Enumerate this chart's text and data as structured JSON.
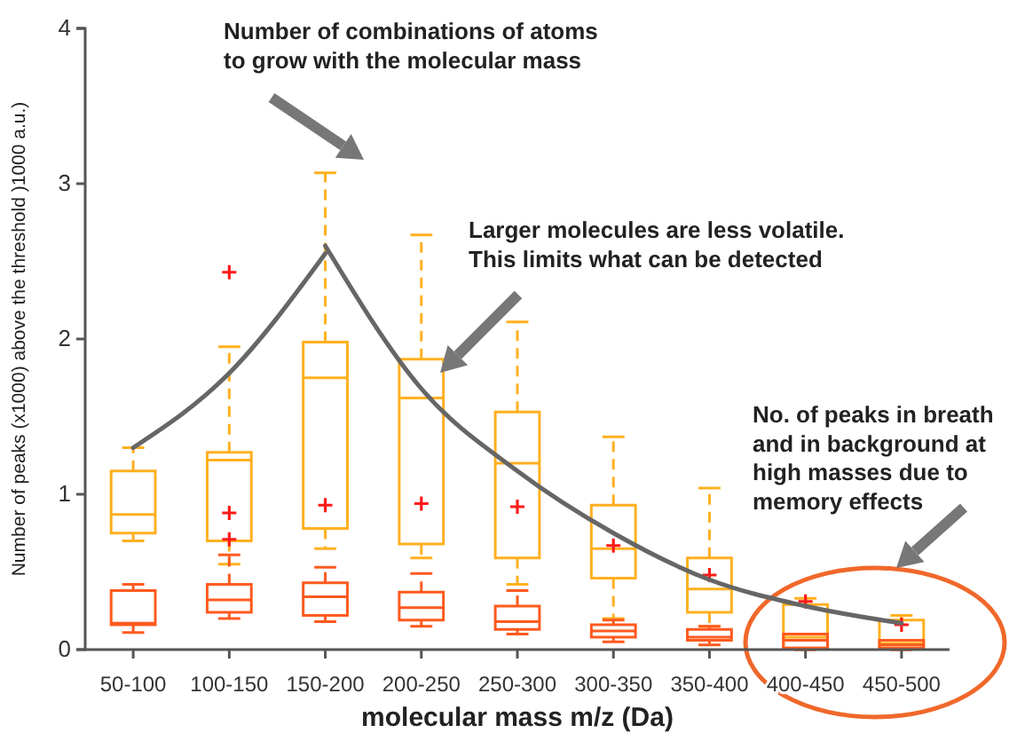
{
  "chart_data": {
    "type": "box",
    "xlabel": "molecular mass m/z (Da)",
    "ylabel": "Number of peaks (x1000) above the threshold )1000 a.u.)",
    "categories": [
      "50-100",
      "100-150",
      "150-200",
      "200-250",
      "250-300",
      "300-350",
      "350-400",
      "400-450",
      "450-500"
    ],
    "ylim": [
      0,
      4
    ],
    "yticks": [
      0,
      1,
      2,
      3,
      4
    ],
    "grid": false,
    "annotations": [
      "Number of combinations of atoms\nto grow with the molecular mass",
      "Larger molecules are less volatile.\nThis limits what can be detected",
      "No. of peaks in breath\nand in background at\nhigh masses due to\nmemory effects"
    ],
    "series": [
      {
        "color": "#ffb020",
        "boxes": [
          {
            "low": 0.7,
            "q1": 0.75,
            "median": 0.87,
            "q3": 1.15,
            "high": 1.3
          },
          {
            "low": 0.55,
            "q1": 0.7,
            "median": 1.22,
            "q3": 1.27,
            "high": 1.95,
            "outliers": [
              2.43,
              0.88,
              0.71
            ]
          },
          {
            "low": 0.65,
            "q1": 0.78,
            "median": 1.75,
            "q3": 1.98,
            "high": 3.07,
            "outliers": [
              0.93
            ]
          },
          {
            "low": 0.59,
            "q1": 0.68,
            "median": 1.62,
            "q3": 1.87,
            "high": 2.67,
            "outliers": [
              0.94
            ]
          },
          {
            "low": 0.42,
            "q1": 0.59,
            "median": 1.2,
            "q3": 1.53,
            "high": 2.11,
            "outliers": [
              0.92
            ]
          },
          {
            "low": 0.2,
            "q1": 0.46,
            "median": 0.65,
            "q3": 0.93,
            "high": 1.37,
            "outliers": [
              0.67
            ]
          },
          {
            "low": 0.15,
            "q1": 0.24,
            "median": 0.39,
            "q3": 0.59,
            "high": 1.04,
            "outliers": [
              0.48
            ]
          },
          {
            "low": 0,
            "q1": 0.01,
            "median": 0.08,
            "q3": 0.29,
            "high": 0.33,
            "outliers": [
              0.31
            ]
          },
          {
            "low": 0,
            "q1": 0.01,
            "median": 0.04,
            "q3": 0.19,
            "high": 0.22,
            "outliers": [
              0.16
            ]
          }
        ]
      },
      {
        "color": "#ff5a1f",
        "boxes": [
          {
            "low": 0.11,
            "q1": 0.16,
            "median": 0.17,
            "q3": 0.38,
            "high": 0.42
          },
          {
            "low": 0.2,
            "q1": 0.24,
            "median": 0.32,
            "q3": 0.42,
            "high": 0.61
          },
          {
            "low": 0.18,
            "q1": 0.22,
            "median": 0.34,
            "q3": 0.43,
            "high": 0.53
          },
          {
            "low": 0.15,
            "q1": 0.19,
            "median": 0.27,
            "q3": 0.37,
            "high": 0.49
          },
          {
            "low": 0.1,
            "q1": 0.13,
            "median": 0.18,
            "q3": 0.28,
            "high": 0.38
          },
          {
            "low": 0.05,
            "q1": 0.08,
            "median": 0.12,
            "q3": 0.16,
            "high": 0.19
          },
          {
            "low": 0.03,
            "q1": 0.06,
            "median": 0.08,
            "q3": 0.13,
            "high": 0.15
          },
          {
            "low": 0,
            "q1": 0.01,
            "median": 0.06,
            "q3": 0.1,
            "high": 0.1
          },
          {
            "low": 0,
            "q1": 0.01,
            "median": 0.03,
            "q3": 0.06,
            "high": 0.06
          }
        ]
      },
      {
        "type": "line",
        "color": "#666666",
        "values": [
          1.3,
          1.78,
          2.55,
          null,
          null,
          null,
          null,
          null,
          null
        ]
      },
      {
        "type": "line",
        "color": "#666666",
        "values": [
          null,
          null,
          2.6,
          1.68,
          1.15,
          0.75,
          0.45,
          0.28,
          0.17
        ]
      }
    ]
  }
}
